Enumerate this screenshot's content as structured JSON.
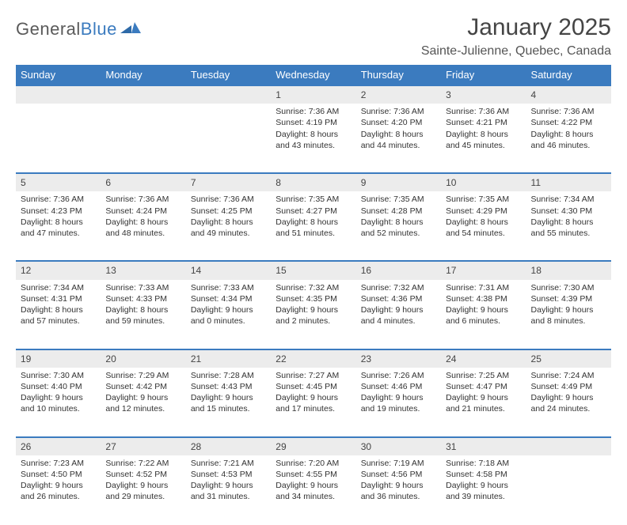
{
  "brand": {
    "name1": "General",
    "name2": "Blue"
  },
  "title": "January 2025",
  "location": "Sainte-Julienne, Quebec, Canada",
  "colors": {
    "accent": "#3b7bbf",
    "header_bg": "#3b7bbf",
    "daynum_bg": "#ececec"
  },
  "dayNames": [
    "Sunday",
    "Monday",
    "Tuesday",
    "Wednesday",
    "Thursday",
    "Friday",
    "Saturday"
  ],
  "weeks": [
    [
      null,
      null,
      null,
      {
        "n": "1",
        "sr": "Sunrise: 7:36 AM",
        "ss": "Sunset: 4:19 PM",
        "d1": "Daylight: 8 hours",
        "d2": "and 43 minutes."
      },
      {
        "n": "2",
        "sr": "Sunrise: 7:36 AM",
        "ss": "Sunset: 4:20 PM",
        "d1": "Daylight: 8 hours",
        "d2": "and 44 minutes."
      },
      {
        "n": "3",
        "sr": "Sunrise: 7:36 AM",
        "ss": "Sunset: 4:21 PM",
        "d1": "Daylight: 8 hours",
        "d2": "and 45 minutes."
      },
      {
        "n": "4",
        "sr": "Sunrise: 7:36 AM",
        "ss": "Sunset: 4:22 PM",
        "d1": "Daylight: 8 hours",
        "d2": "and 46 minutes."
      }
    ],
    [
      {
        "n": "5",
        "sr": "Sunrise: 7:36 AM",
        "ss": "Sunset: 4:23 PM",
        "d1": "Daylight: 8 hours",
        "d2": "and 47 minutes."
      },
      {
        "n": "6",
        "sr": "Sunrise: 7:36 AM",
        "ss": "Sunset: 4:24 PM",
        "d1": "Daylight: 8 hours",
        "d2": "and 48 minutes."
      },
      {
        "n": "7",
        "sr": "Sunrise: 7:36 AM",
        "ss": "Sunset: 4:25 PM",
        "d1": "Daylight: 8 hours",
        "d2": "and 49 minutes."
      },
      {
        "n": "8",
        "sr": "Sunrise: 7:35 AM",
        "ss": "Sunset: 4:27 PM",
        "d1": "Daylight: 8 hours",
        "d2": "and 51 minutes."
      },
      {
        "n": "9",
        "sr": "Sunrise: 7:35 AM",
        "ss": "Sunset: 4:28 PM",
        "d1": "Daylight: 8 hours",
        "d2": "and 52 minutes."
      },
      {
        "n": "10",
        "sr": "Sunrise: 7:35 AM",
        "ss": "Sunset: 4:29 PM",
        "d1": "Daylight: 8 hours",
        "d2": "and 54 minutes."
      },
      {
        "n": "11",
        "sr": "Sunrise: 7:34 AM",
        "ss": "Sunset: 4:30 PM",
        "d1": "Daylight: 8 hours",
        "d2": "and 55 minutes."
      }
    ],
    [
      {
        "n": "12",
        "sr": "Sunrise: 7:34 AM",
        "ss": "Sunset: 4:31 PM",
        "d1": "Daylight: 8 hours",
        "d2": "and 57 minutes."
      },
      {
        "n": "13",
        "sr": "Sunrise: 7:33 AM",
        "ss": "Sunset: 4:33 PM",
        "d1": "Daylight: 8 hours",
        "d2": "and 59 minutes."
      },
      {
        "n": "14",
        "sr": "Sunrise: 7:33 AM",
        "ss": "Sunset: 4:34 PM",
        "d1": "Daylight: 9 hours",
        "d2": "and 0 minutes."
      },
      {
        "n": "15",
        "sr": "Sunrise: 7:32 AM",
        "ss": "Sunset: 4:35 PM",
        "d1": "Daylight: 9 hours",
        "d2": "and 2 minutes."
      },
      {
        "n": "16",
        "sr": "Sunrise: 7:32 AM",
        "ss": "Sunset: 4:36 PM",
        "d1": "Daylight: 9 hours",
        "d2": "and 4 minutes."
      },
      {
        "n": "17",
        "sr": "Sunrise: 7:31 AM",
        "ss": "Sunset: 4:38 PM",
        "d1": "Daylight: 9 hours",
        "d2": "and 6 minutes."
      },
      {
        "n": "18",
        "sr": "Sunrise: 7:30 AM",
        "ss": "Sunset: 4:39 PM",
        "d1": "Daylight: 9 hours",
        "d2": "and 8 minutes."
      }
    ],
    [
      {
        "n": "19",
        "sr": "Sunrise: 7:30 AM",
        "ss": "Sunset: 4:40 PM",
        "d1": "Daylight: 9 hours",
        "d2": "and 10 minutes."
      },
      {
        "n": "20",
        "sr": "Sunrise: 7:29 AM",
        "ss": "Sunset: 4:42 PM",
        "d1": "Daylight: 9 hours",
        "d2": "and 12 minutes."
      },
      {
        "n": "21",
        "sr": "Sunrise: 7:28 AM",
        "ss": "Sunset: 4:43 PM",
        "d1": "Daylight: 9 hours",
        "d2": "and 15 minutes."
      },
      {
        "n": "22",
        "sr": "Sunrise: 7:27 AM",
        "ss": "Sunset: 4:45 PM",
        "d1": "Daylight: 9 hours",
        "d2": "and 17 minutes."
      },
      {
        "n": "23",
        "sr": "Sunrise: 7:26 AM",
        "ss": "Sunset: 4:46 PM",
        "d1": "Daylight: 9 hours",
        "d2": "and 19 minutes."
      },
      {
        "n": "24",
        "sr": "Sunrise: 7:25 AM",
        "ss": "Sunset: 4:47 PM",
        "d1": "Daylight: 9 hours",
        "d2": "and 21 minutes."
      },
      {
        "n": "25",
        "sr": "Sunrise: 7:24 AM",
        "ss": "Sunset: 4:49 PM",
        "d1": "Daylight: 9 hours",
        "d2": "and 24 minutes."
      }
    ],
    [
      {
        "n": "26",
        "sr": "Sunrise: 7:23 AM",
        "ss": "Sunset: 4:50 PM",
        "d1": "Daylight: 9 hours",
        "d2": "and 26 minutes."
      },
      {
        "n": "27",
        "sr": "Sunrise: 7:22 AM",
        "ss": "Sunset: 4:52 PM",
        "d1": "Daylight: 9 hours",
        "d2": "and 29 minutes."
      },
      {
        "n": "28",
        "sr": "Sunrise: 7:21 AM",
        "ss": "Sunset: 4:53 PM",
        "d1": "Daylight: 9 hours",
        "d2": "and 31 minutes."
      },
      {
        "n": "29",
        "sr": "Sunrise: 7:20 AM",
        "ss": "Sunset: 4:55 PM",
        "d1": "Daylight: 9 hours",
        "d2": "and 34 minutes."
      },
      {
        "n": "30",
        "sr": "Sunrise: 7:19 AM",
        "ss": "Sunset: 4:56 PM",
        "d1": "Daylight: 9 hours",
        "d2": "and 36 minutes."
      },
      {
        "n": "31",
        "sr": "Sunrise: 7:18 AM",
        "ss": "Sunset: 4:58 PM",
        "d1": "Daylight: 9 hours",
        "d2": "and 39 minutes."
      },
      null
    ]
  ]
}
